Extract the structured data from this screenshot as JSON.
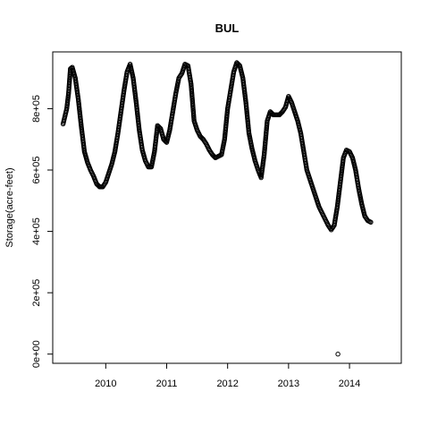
{
  "chart_data": {
    "type": "scatter",
    "title": "BUL",
    "xlabel": "",
    "ylabel": "Storage(acre-feet)",
    "xlim": [
      2009.13,
      2014.85
    ],
    "ylim": [
      -30000,
      985000
    ],
    "x_ticks": [
      {
        "value": 2010,
        "label": "2010"
      },
      {
        "value": 2011,
        "label": "2011"
      },
      {
        "value": 2012,
        "label": "2012"
      },
      {
        "value": 2013,
        "label": "2013"
      },
      {
        "value": 2014,
        "label": "2014"
      }
    ],
    "y_ticks": [
      {
        "value": 0,
        "label": "0e+00"
      },
      {
        "value": 200000,
        "label": "2e+05"
      },
      {
        "value": 400000,
        "label": "4e+05"
      },
      {
        "value": 600000,
        "label": "6e+05"
      },
      {
        "value": 800000,
        "label": "8e+05"
      }
    ],
    "grid": false,
    "marker": "open-circle",
    "series": [
      {
        "trace_points": [
          [
            2009.3,
            750000
          ],
          [
            2009.33,
            775000
          ],
          [
            2009.36,
            800000
          ],
          [
            2009.39,
            850000
          ],
          [
            2009.42,
            930000
          ],
          [
            2009.45,
            935000
          ],
          [
            2009.5,
            900000
          ],
          [
            2009.55,
            830000
          ],
          [
            2009.6,
            740000
          ],
          [
            2009.65,
            660000
          ],
          [
            2009.7,
            625000
          ],
          [
            2009.75,
            600000
          ],
          [
            2009.8,
            580000
          ],
          [
            2009.85,
            555000
          ],
          [
            2009.9,
            545000
          ],
          [
            2009.95,
            545000
          ],
          [
            2010.0,
            560000
          ],
          [
            2010.05,
            590000
          ],
          [
            2010.1,
            620000
          ],
          [
            2010.15,
            660000
          ],
          [
            2010.2,
            720000
          ],
          [
            2010.25,
            790000
          ],
          [
            2010.3,
            860000
          ],
          [
            2010.35,
            920000
          ],
          [
            2010.4,
            945000
          ],
          [
            2010.45,
            900000
          ],
          [
            2010.5,
            820000
          ],
          [
            2010.55,
            730000
          ],
          [
            2010.6,
            665000
          ],
          [
            2010.65,
            630000
          ],
          [
            2010.7,
            610000
          ],
          [
            2010.75,
            610000
          ],
          [
            2010.8,
            660000
          ],
          [
            2010.85,
            745000
          ],
          [
            2010.9,
            735000
          ],
          [
            2010.95,
            700000
          ],
          [
            2011.0,
            690000
          ],
          [
            2011.05,
            730000
          ],
          [
            2011.1,
            790000
          ],
          [
            2011.15,
            850000
          ],
          [
            2011.2,
            900000
          ],
          [
            2011.25,
            915000
          ],
          [
            2011.3,
            945000
          ],
          [
            2011.35,
            940000
          ],
          [
            2011.4,
            880000
          ],
          [
            2011.45,
            760000
          ],
          [
            2011.5,
            730000
          ],
          [
            2011.55,
            710000
          ],
          [
            2011.6,
            700000
          ],
          [
            2011.65,
            685000
          ],
          [
            2011.7,
            665000
          ],
          [
            2011.75,
            650000
          ],
          [
            2011.8,
            640000
          ],
          [
            2011.85,
            645000
          ],
          [
            2011.9,
            650000
          ],
          [
            2011.95,
            700000
          ],
          [
            2012.0,
            800000
          ],
          [
            2012.05,
            860000
          ],
          [
            2012.1,
            920000
          ],
          [
            2012.15,
            950000
          ],
          [
            2012.2,
            940000
          ],
          [
            2012.25,
            900000
          ],
          [
            2012.3,
            820000
          ],
          [
            2012.35,
            720000
          ],
          [
            2012.4,
            670000
          ],
          [
            2012.45,
            630000
          ],
          [
            2012.5,
            600000
          ],
          [
            2012.55,
            575000
          ],
          [
            2012.6,
            650000
          ],
          [
            2012.65,
            760000
          ],
          [
            2012.7,
            790000
          ],
          [
            2012.75,
            780000
          ],
          [
            2012.8,
            780000
          ],
          [
            2012.85,
            780000
          ],
          [
            2012.9,
            790000
          ],
          [
            2012.95,
            805000
          ],
          [
            2013.0,
            840000
          ],
          [
            2013.05,
            820000
          ],
          [
            2013.1,
            790000
          ],
          [
            2013.15,
            760000
          ],
          [
            2013.2,
            720000
          ],
          [
            2013.25,
            660000
          ],
          [
            2013.3,
            600000
          ],
          [
            2013.35,
            570000
          ],
          [
            2013.4,
            540000
          ],
          [
            2013.45,
            510000
          ],
          [
            2013.5,
            480000
          ],
          [
            2013.55,
            460000
          ],
          [
            2013.6,
            440000
          ],
          [
            2013.65,
            420000
          ],
          [
            2013.7,
            405000
          ],
          [
            2013.75,
            420000
          ],
          [
            2013.8,
            480000
          ],
          [
            2013.85,
            560000
          ],
          [
            2013.9,
            640000
          ],
          [
            2013.95,
            665000
          ],
          [
            2014.0,
            660000
          ],
          [
            2014.05,
            640000
          ],
          [
            2014.1,
            600000
          ],
          [
            2014.15,
            540000
          ],
          [
            2014.2,
            490000
          ],
          [
            2014.25,
            450000
          ],
          [
            2014.3,
            435000
          ],
          [
            2014.35,
            430000
          ]
        ],
        "outliers": [
          [
            2013.81,
            0
          ]
        ]
      }
    ]
  }
}
